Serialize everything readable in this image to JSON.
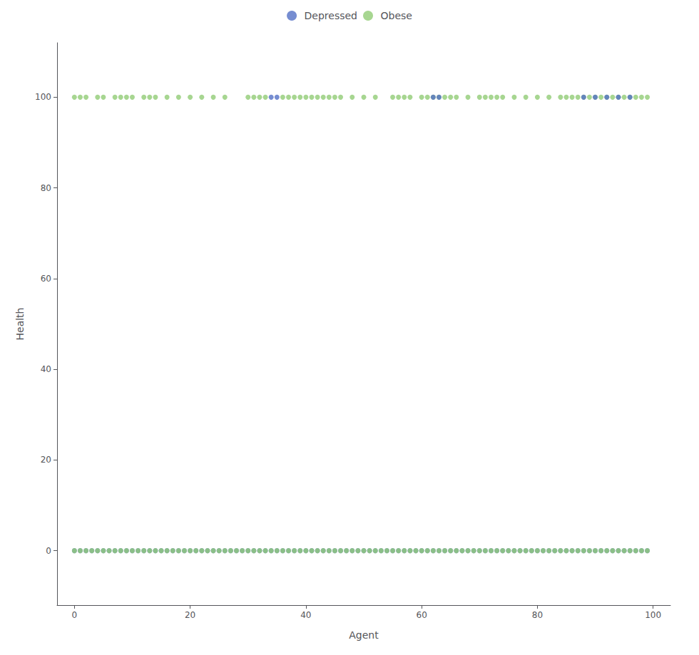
{
  "chart_data": {
    "type": "scatter",
    "xlabel": "Agent",
    "ylabel": "Health",
    "xlim": [
      -3,
      103
    ],
    "ylim": [
      -12,
      112
    ],
    "xticks": [
      0,
      20,
      40,
      60,
      80,
      100
    ],
    "yticks": [
      0,
      20,
      40,
      60,
      80,
      100
    ],
    "grid": false,
    "legend": "top",
    "series": [
      {
        "name": "Depressed",
        "x": [
          0,
          1,
          2,
          3,
          4,
          5,
          6,
          7,
          8,
          9,
          10,
          11,
          12,
          13,
          14,
          15,
          16,
          17,
          18,
          19,
          20,
          21,
          22,
          23,
          24,
          25,
          26,
          27,
          28,
          29,
          30,
          31,
          32,
          33,
          34,
          35,
          36,
          37,
          38,
          39,
          40,
          41,
          42,
          43,
          44,
          45,
          46,
          47,
          48,
          49,
          50,
          51,
          52,
          53,
          54,
          55,
          56,
          57,
          58,
          59,
          60,
          61,
          62,
          63,
          64,
          65,
          66,
          67,
          68,
          69,
          70,
          71,
          72,
          73,
          74,
          75,
          76,
          77,
          78,
          79,
          80,
          81,
          82,
          83,
          84,
          85,
          86,
          87,
          88,
          89,
          90,
          91,
          92,
          93,
          94,
          95,
          96,
          97,
          98,
          99
        ],
        "values": [
          0,
          0,
          0,
          0,
          0,
          0,
          0,
          0,
          0,
          0,
          0,
          0,
          0,
          0,
          0,
          0,
          0,
          0,
          0,
          0,
          0,
          0,
          0,
          0,
          0,
          0,
          0,
          0,
          0,
          0,
          0,
          0,
          0,
          0,
          0,
          0,
          0,
          0,
          0,
          0,
          0,
          0,
          0,
          0,
          0,
          0,
          0,
          0,
          0,
          0,
          0,
          0,
          0,
          0,
          0,
          0,
          0,
          0,
          0,
          0,
          0,
          0,
          0,
          0,
          0,
          0,
          0,
          0,
          0,
          0,
          0,
          0,
          0,
          0,
          0,
          0,
          0,
          0,
          0,
          0,
          0,
          0,
          0,
          0,
          0,
          0,
          0,
          0,
          0,
          0,
          0,
          0,
          0,
          0,
          0,
          0,
          0,
          0,
          0,
          0
        ]
      },
      {
        "name": "Obese",
        "x": [
          0,
          1,
          2,
          3,
          4,
          5,
          6,
          7,
          8,
          9,
          10,
          11,
          12,
          13,
          14,
          15,
          16,
          17,
          18,
          19,
          20,
          21,
          22,
          23,
          24,
          25,
          26,
          27,
          28,
          29,
          30,
          31,
          32,
          33,
          34,
          35,
          36,
          37,
          38,
          39,
          40,
          41,
          42,
          43,
          44,
          45,
          46,
          47,
          48,
          49,
          50,
          51,
          52,
          53,
          54,
          55,
          56,
          57,
          58,
          59,
          60,
          61,
          62,
          63,
          64,
          65,
          66,
          67,
          68,
          69,
          70,
          71,
          72,
          73,
          74,
          75,
          76,
          77,
          78,
          79,
          80,
          81,
          82,
          83,
          84,
          85,
          86,
          87,
          88,
          89,
          90,
          91,
          92,
          93,
          94,
          95,
          96,
          97,
          98,
          99
        ],
        "values": [
          0,
          0,
          0,
          0,
          0,
          0,
          0,
          0,
          0,
          0,
          0,
          0,
          0,
          0,
          0,
          0,
          0,
          0,
          0,
          0,
          0,
          0,
          0,
          0,
          0,
          0,
          0,
          0,
          0,
          0,
          0,
          0,
          0,
          0,
          0,
          0,
          0,
          0,
          0,
          0,
          0,
          0,
          0,
          0,
          0,
          0,
          0,
          0,
          0,
          0,
          0,
          0,
          0,
          0,
          0,
          0,
          0,
          0,
          0,
          0,
          0,
          0,
          0,
          0,
          0,
          0,
          0,
          0,
          0,
          0,
          0,
          0,
          0,
          0,
          0,
          0,
          0,
          0,
          0,
          0,
          0,
          0,
          0,
          0,
          0,
          0,
          0,
          0,
          0,
          0,
          0,
          0,
          0,
          0,
          0,
          0,
          0,
          0,
          0,
          0
        ]
      },
      {
        "name": "Obese",
        "x": [
          0,
          1,
          2,
          4,
          5,
          7,
          8,
          9,
          10,
          12,
          13,
          14,
          16,
          18,
          20,
          22,
          24,
          26,
          30,
          31,
          32,
          33,
          36,
          37,
          38,
          39,
          40,
          41,
          42,
          43,
          44,
          45,
          46,
          48,
          50,
          52,
          55,
          56,
          57,
          58,
          60,
          61,
          62,
          63,
          64,
          65,
          66,
          68,
          70,
          71,
          72,
          73,
          74,
          76,
          78,
          80,
          82,
          84,
          85,
          86,
          87,
          88,
          89,
          90,
          91,
          92,
          93,
          94,
          95,
          96,
          97,
          98,
          99
        ],
        "values": [
          100,
          100,
          100,
          100,
          100,
          100,
          100,
          100,
          100,
          100,
          100,
          100,
          100,
          100,
          100,
          100,
          100,
          100,
          100,
          100,
          100,
          100,
          100,
          100,
          100,
          100,
          100,
          100,
          100,
          100,
          100,
          100,
          100,
          100,
          100,
          100,
          100,
          100,
          100,
          100,
          100,
          100,
          100,
          100,
          100,
          100,
          100,
          100,
          100,
          100,
          100,
          100,
          100,
          100,
          100,
          100,
          100,
          100,
          100,
          100,
          100,
          100,
          100,
          100,
          100,
          100,
          100,
          100,
          100,
          100,
          100,
          100,
          100
        ]
      },
      {
        "name": "Depressed",
        "x": [
          34,
          35,
          62,
          63,
          88,
          90,
          92,
          94,
          96
        ],
        "values": [
          100,
          100,
          100,
          100,
          100,
          100,
          100,
          100,
          100
        ]
      }
    ]
  }
}
